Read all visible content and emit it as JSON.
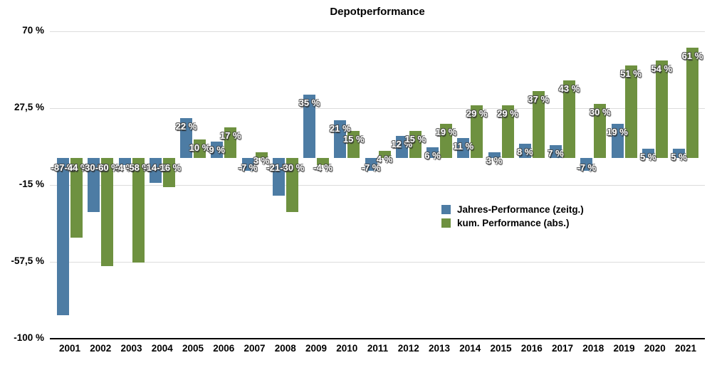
{
  "chart_data": {
    "type": "bar",
    "title": "Depotperformance",
    "categories": [
      "2001",
      "2002",
      "2003",
      "2004",
      "2005",
      "2006",
      "2007",
      "2008",
      "2009",
      "2010",
      "2011",
      "2012",
      "2013",
      "2014",
      "2015",
      "2016",
      "2017",
      "2018",
      "2019",
      "2020",
      "2021"
    ],
    "series": [
      {
        "name": "Jahres-Performance (zeitg.)",
        "color": "#4d7ca4",
        "values": [
          -87,
          -30,
          -4,
          -14,
          22,
          9,
          -7,
          -21,
          35,
          21,
          -7,
          12,
          6,
          11,
          3,
          8,
          7,
          -7,
          19,
          5,
          5
        ]
      },
      {
        "name": "kum. Performance (abs.)",
        "color": "#6e9140",
        "values": [
          -44,
          -60,
          -58,
          -16,
          10,
          17,
          3,
          -30,
          -4,
          15,
          4,
          15,
          19,
          29,
          29,
          37,
          43,
          30,
          51,
          54,
          61
        ]
      }
    ],
    "value_suffix": " %",
    "ylim": [
      -100,
      70
    ],
    "yticks": [
      {
        "value": 70,
        "label": "70 %"
      },
      {
        "value": 27.5,
        "label": "27,5 %"
      },
      {
        "value": -15,
        "label": "-15 %"
      },
      {
        "value": -57.5,
        "label": "-57,5 %"
      },
      {
        "value": -100,
        "label": "-100 %"
      }
    ],
    "grid": true,
    "legend_position": "center-right"
  }
}
